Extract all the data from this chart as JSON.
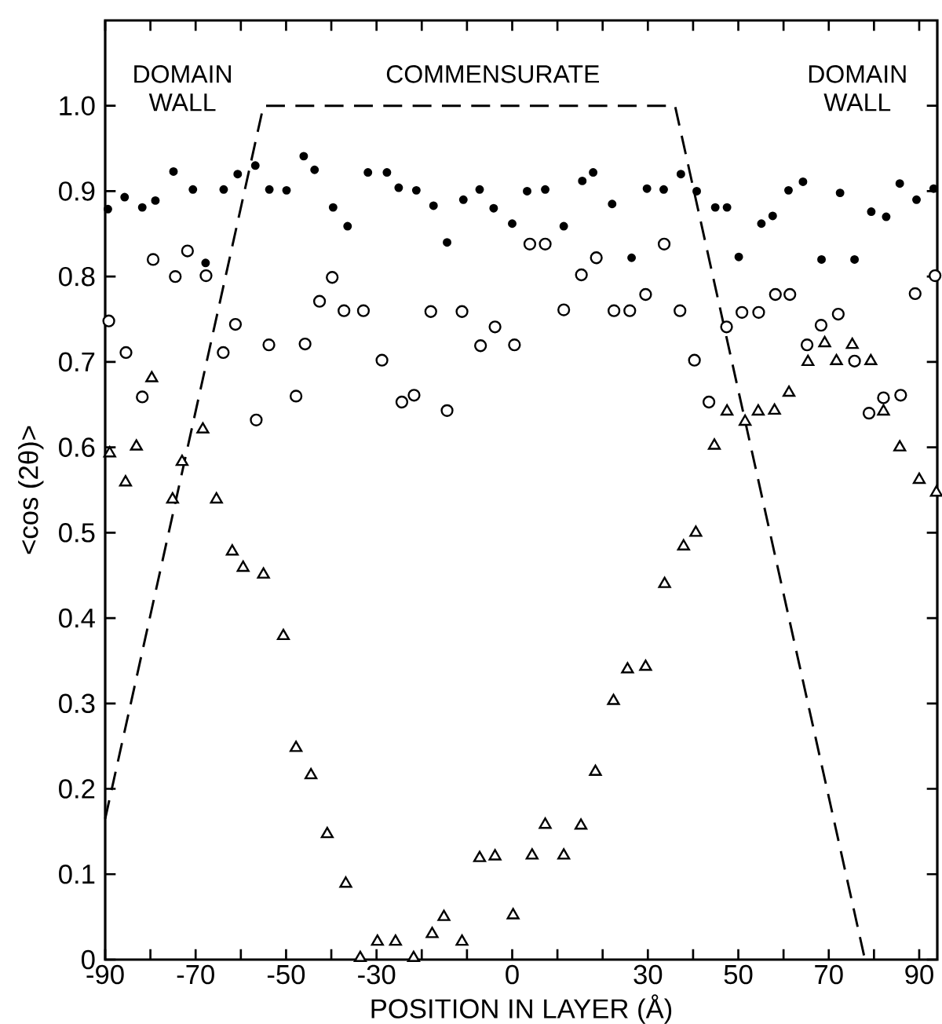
{
  "chart_data": {
    "type": "scatter",
    "xlabel": "POSITION IN LAYER (Å)",
    "ylabel": "<cos (2θ)>",
    "xlim": [
      -90,
      94
    ],
    "ylim": [
      0,
      1.1
    ],
    "xticks": [
      -90,
      {
        "value": -80,
        "label": null
      },
      -70,
      {
        "value": -60,
        "label": null
      },
      -50,
      {
        "value": -40,
        "label": null
      },
      -30,
      {
        "value": -20,
        "label": null
      },
      {
        "value": -10,
        "label": null
      },
      0,
      {
        "value": 10,
        "label": null
      },
      {
        "value": 20,
        "label": null
      },
      30,
      {
        "value": 40,
        "label": null
      },
      50,
      {
        "value": 60,
        "label": null
      },
      70,
      {
        "value": 80,
        "label": null
      },
      90
    ],
    "yticks": [
      0,
      0.1,
      0.2,
      0.3,
      0.4,
      0.5,
      0.6,
      0.7,
      0.8,
      0.9,
      {
        "value": 1,
        "label": "1.0"
      }
    ],
    "annotations": [
      "DOMAIN WALL",
      "COMMENSURATE",
      "DOMAIN WALL"
    ],
    "series": [
      {
        "marker": "circle",
        "color": "#000000",
        "x": [
          -89.4,
          -85.7,
          -81.8,
          -78.9,
          -74.9,
          -70.6,
          -67.8,
          -63.8,
          -60.7,
          -56.8,
          -53.7,
          -49.9,
          -46.1,
          -43.7,
          -39.6,
          -36.4,
          -31.9,
          -27.7,
          -25.1,
          -21.2,
          -17.4,
          -14.4,
          -10.8,
          -7.2,
          -4.1,
          0.0,
          3.3,
          7.3,
          11.4,
          15.5,
          17.9,
          22.1,
          26.4,
          29.8,
          33.5,
          37.3,
          40.8,
          44.9,
          47.5,
          50.1,
          55.1,
          57.6,
          61.1,
          64.3,
          68.4,
          72.5,
          75.7,
          79.4,
          82.7,
          85.7,
          89.4,
          93.2
        ],
        "values": [
          0.879,
          0.893,
          0.881,
          0.889,
          0.923,
          0.902,
          0.816,
          0.902,
          0.92,
          0.93,
          0.902,
          0.901,
          0.941,
          0.925,
          0.881,
          0.859,
          0.922,
          0.922,
          0.904,
          0.901,
          0.883,
          0.84,
          0.89,
          0.902,
          0.88,
          0.862,
          0.9,
          0.902,
          0.859,
          0.912,
          0.922,
          0.885,
          0.822,
          0.903,
          0.902,
          0.92,
          0.9,
          0.881,
          0.881,
          0.823,
          0.862,
          0.871,
          0.901,
          0.911,
          0.82,
          0.898,
          0.82,
          0.876,
          0.87,
          0.909,
          0.89,
          0.903
        ]
      },
      {
        "marker": "circle",
        "color": "#000000",
        "x": [
          -89.2,
          -85.4,
          -81.8,
          -79.4,
          -74.5,
          -71.8,
          -67.7,
          -63.9,
          -61.2,
          -56.6,
          -53.8,
          -47.8,
          -45.8,
          -42.6,
          -39.8,
          -37.2,
          -32.9,
          -28.8,
          -24.4,
          -21.7,
          -18.0,
          -14.4,
          -11.1,
          -7.0,
          -3.8,
          0.5,
          3.9,
          7.3,
          11.4,
          15.3,
          18.6,
          22.5,
          26.0,
          29.5,
          33.6,
          37.1,
          40.3,
          43.5,
          47.4,
          50.8,
          54.5,
          58.2,
          61.4,
          65.2,
          68.3,
          72.1,
          75.7,
          78.9,
          82.1,
          85.9,
          89.1,
          93.5
        ],
        "values": [
          0.748,
          0.711,
          0.659,
          0.82,
          0.8,
          0.83,
          0.801,
          0.711,
          0.744,
          0.632,
          0.72,
          0.66,
          0.721,
          0.771,
          0.799,
          0.76,
          0.76,
          0.702,
          0.653,
          0.661,
          0.759,
          0.643,
          0.759,
          0.719,
          0.741,
          0.72,
          0.838,
          0.838,
          0.761,
          0.802,
          0.822,
          0.76,
          0.76,
          0.779,
          0.838,
          0.76,
          0.702,
          0.653,
          0.741,
          0.758,
          0.758,
          0.779,
          0.779,
          0.72,
          0.743,
          0.756,
          0.701,
          0.64,
          0.658,
          0.661,
          0.78,
          0.801
        ]
      },
      {
        "marker": "triangle",
        "color": "#000000",
        "x": [
          -89.0,
          -85.5,
          -83.1,
          -79.7,
          -75.1,
          -73.0,
          -68.4,
          -65.4,
          -61.9,
          -59.5,
          -55.0,
          -50.6,
          -47.8,
          -44.5,
          -40.9,
          -36.8,
          -33.6,
          -29.8,
          -25.8,
          -21.8,
          -17.7,
          -15.1,
          -11.1,
          -7.2,
          -3.8,
          0.2,
          4.4,
          7.3,
          11.4,
          15.2,
          18.4,
          22.4,
          25.5,
          29.5,
          33.7,
          37.9,
          40.6,
          44.7,
          47.5,
          51.5,
          54.4,
          58.0,
          61.2,
          65.4,
          69.1,
          71.7,
          75.2,
          79.3,
          82.1,
          85.7,
          90.0,
          93.8
        ],
        "values": [
          0.593,
          0.559,
          0.601,
          0.681,
          0.539,
          0.583,
          0.621,
          0.539,
          0.478,
          0.459,
          0.451,
          0.379,
          0.248,
          0.216,
          0.147,
          0.089,
          0.002,
          0.021,
          0.021,
          0.002,
          0.03,
          0.05,
          0.021,
          0.119,
          0.121,
          0.052,
          0.122,
          0.158,
          0.122,
          0.157,
          0.22,
          0.303,
          0.34,
          0.343,
          0.44,
          0.484,
          0.5,
          0.602,
          0.642,
          0.63,
          0.642,
          0.643,
          0.664,
          0.7,
          0.722,
          0.701,
          0.72,
          0.701,
          0.642,
          0.6,
          0.562,
          0.547
        ]
      },
      {
        "type": "line",
        "marker": "none",
        "line_style": "dashed",
        "color": "#000000",
        "x": [
          -90,
          -55,
          36,
          78
        ],
        "values": [
          0.165,
          1,
          1,
          0
        ]
      }
    ]
  }
}
